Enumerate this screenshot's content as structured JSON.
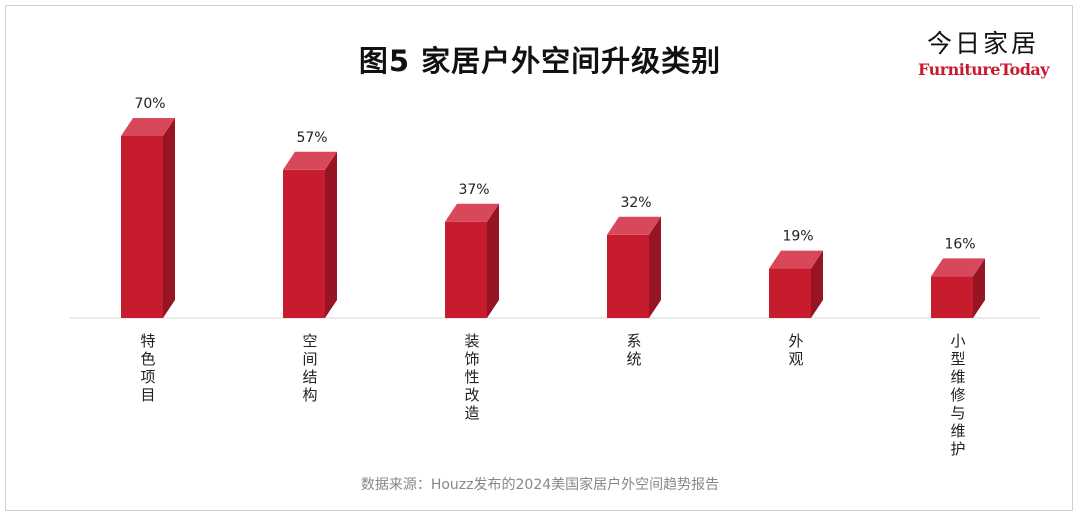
{
  "title": "图5  家居户外空间升级类别",
  "logo": {
    "cn": "今日家居",
    "en": "FurnitureToday"
  },
  "source": "数据来源：Houzz发布的2024美国家居户外空间趋势报告",
  "colors": {
    "bar_front": "#c61c2e",
    "bar_top": "#d9475a",
    "bar_side": "#961423"
  },
  "chart_data": {
    "type": "bar",
    "title": "图5  家居户外空间升级类别",
    "categories": [
      "特色项目",
      "空间结构",
      "装饰性改造",
      "系统",
      "外观",
      "小型维修与维护"
    ],
    "values": [
      70,
      57,
      37,
      32,
      19,
      16
    ],
    "value_labels": [
      "70%",
      "57%",
      "37%",
      "32%",
      "19%",
      "16%"
    ],
    "unit": "%",
    "ylim": [
      0,
      70
    ],
    "grid": false,
    "legend": "none"
  }
}
